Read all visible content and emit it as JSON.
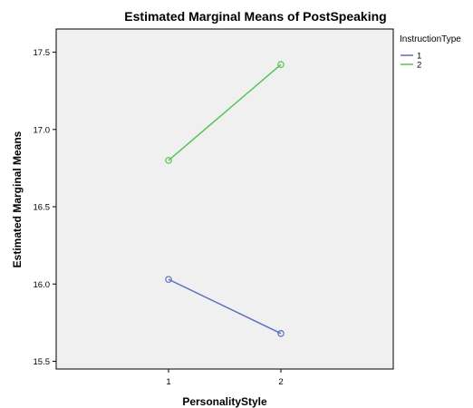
{
  "chart_data": {
    "type": "line",
    "title": "Estimated Marginal Means of PostSpeaking",
    "xlabel": "PersonalityStyle",
    "ylabel": "Estimated Marginal Means",
    "categories": [
      "1",
      "2"
    ],
    "ylim": [
      15.45,
      17.65
    ],
    "yticks": [
      "15.5",
      "16.0",
      "16.5",
      "17.0",
      "17.5"
    ],
    "legend_title": "InstructionType",
    "legend_position": "right",
    "grid": false,
    "plot_background": "#f0f0f0",
    "series": [
      {
        "name": "1",
        "values": [
          16.03,
          15.68
        ],
        "color": "#5b6fbf"
      },
      {
        "name": "2",
        "values": [
          16.8,
          17.42
        ],
        "color": "#55c455"
      }
    ]
  }
}
